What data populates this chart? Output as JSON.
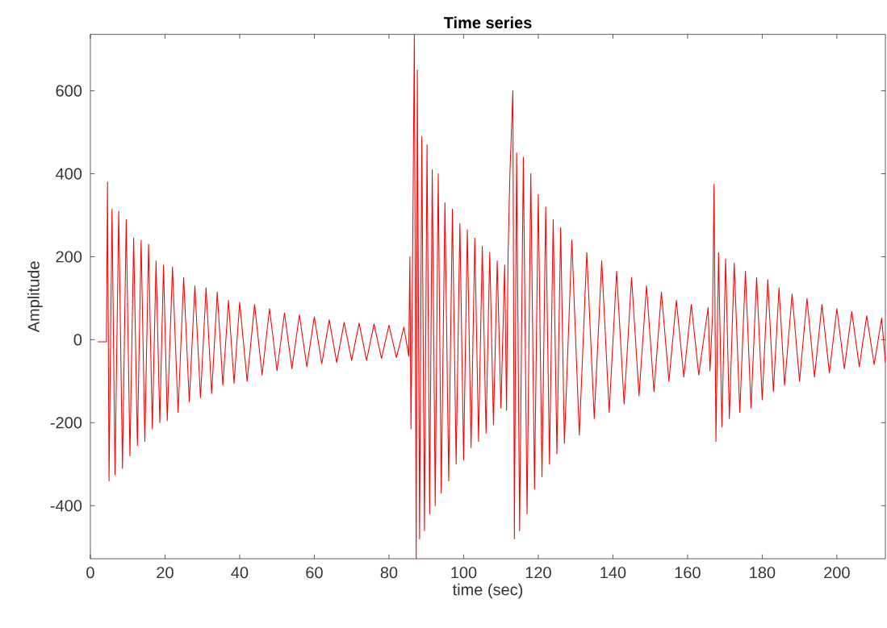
{
  "chart_data": {
    "type": "line",
    "title": "Time series",
    "xlabel": "time (sec)",
    "ylabel": "Amplitude",
    "xlim": [
      0,
      213
    ],
    "ylim": [
      -528,
      736
    ],
    "xticks": [
      0,
      20,
      40,
      60,
      80,
      100,
      120,
      140,
      160,
      180,
      200
    ],
    "yticks": [
      -400,
      -200,
      0,
      200,
      400,
      600
    ],
    "grid": false,
    "marker": "none",
    "line_style": "solid",
    "series": [
      {
        "color": "#ff0000",
        "x": [
          2,
          4.3,
          4.6,
          5.0,
          5.8,
          6.6,
          7.6,
          8.6,
          9.6,
          10.6,
          11.6,
          12.6,
          13.6,
          14.6,
          15.6,
          16.6,
          17.6,
          18.6,
          19.6,
          20.6,
          22,
          23.5,
          25,
          26.5,
          28,
          29.5,
          31,
          32.5,
          34,
          35.5,
          37,
          38.5,
          40,
          42,
          44,
          46,
          48,
          50,
          52,
          54,
          56,
          58,
          60,
          62,
          64,
          66,
          68,
          70,
          72,
          74,
          76,
          78,
          80,
          82,
          84,
          85.3,
          85.6,
          85.9,
          86.3,
          86.8,
          87.3,
          87.6,
          88.2,
          88.8,
          89.5,
          90.2,
          90.9,
          91.6,
          92.4,
          93.2,
          94,
          95,
          96,
          97,
          98,
          99,
          100,
          101,
          102,
          103,
          104,
          105,
          106,
          107,
          108,
          109,
          110,
          111,
          111.5,
          111.9,
          112.4,
          113.2,
          113.6,
          114.2,
          115,
          116,
          117,
          118,
          119,
          120,
          121,
          122,
          123,
          124,
          125,
          126,
          127,
          129,
          131,
          133,
          135,
          137,
          139,
          141,
          143,
          145,
          147,
          149,
          151,
          153,
          155,
          157,
          159,
          161,
          163,
          165.5,
          166,
          166.7,
          167.1,
          167.6,
          168.3,
          169.2,
          170.2,
          171.2,
          172.5,
          174,
          175.5,
          177,
          178.5,
          180,
          181.5,
          183,
          184.5,
          186,
          188,
          190,
          192,
          194,
          196,
          198,
          200,
          202,
          204,
          206,
          208,
          210,
          212,
          213
        ],
        "values": [
          -5,
          -5,
          380,
          -340,
          315,
          -325,
          310,
          -310,
          290,
          -280,
          245,
          -255,
          240,
          -245,
          230,
          -215,
          190,
          -200,
          180,
          -195,
          175,
          -175,
          150,
          -150,
          130,
          -140,
          125,
          -130,
          115,
          -110,
          95,
          -105,
          90,
          -100,
          85,
          -85,
          75,
          -75,
          65,
          -70,
          60,
          -65,
          55,
          -58,
          48,
          -55,
          42,
          -50,
          40,
          -50,
          38,
          -45,
          35,
          -43,
          30,
          -40,
          200,
          -215,
          150,
          736,
          -528,
          650,
          -480,
          490,
          -460,
          470,
          -420,
          410,
          -400,
          400,
          -370,
          330,
          -340,
          315,
          -300,
          280,
          -290,
          265,
          -260,
          245,
          -245,
          225,
          -225,
          210,
          -205,
          190,
          -165,
          180,
          -170,
          200,
          400,
          600,
          -480,
          450,
          -460,
          440,
          -420,
          400,
          -360,
          350,
          -330,
          320,
          -300,
          290,
          -275,
          270,
          -250,
          240,
          -230,
          210,
          -190,
          190,
          -175,
          165,
          -155,
          150,
          -135,
          130,
          -125,
          115,
          -100,
          95,
          -90,
          85,
          -85,
          78,
          -75,
          60,
          375,
          -245,
          210,
          -210,
          195,
          -190,
          185,
          -175,
          165,
          -165,
          150,
          -145,
          145,
          -125,
          125,
          -110,
          110,
          -100,
          100,
          -90,
          85,
          -80,
          75,
          -70,
          68,
          -65,
          58,
          -60,
          52,
          -55
        ]
      }
    ]
  }
}
